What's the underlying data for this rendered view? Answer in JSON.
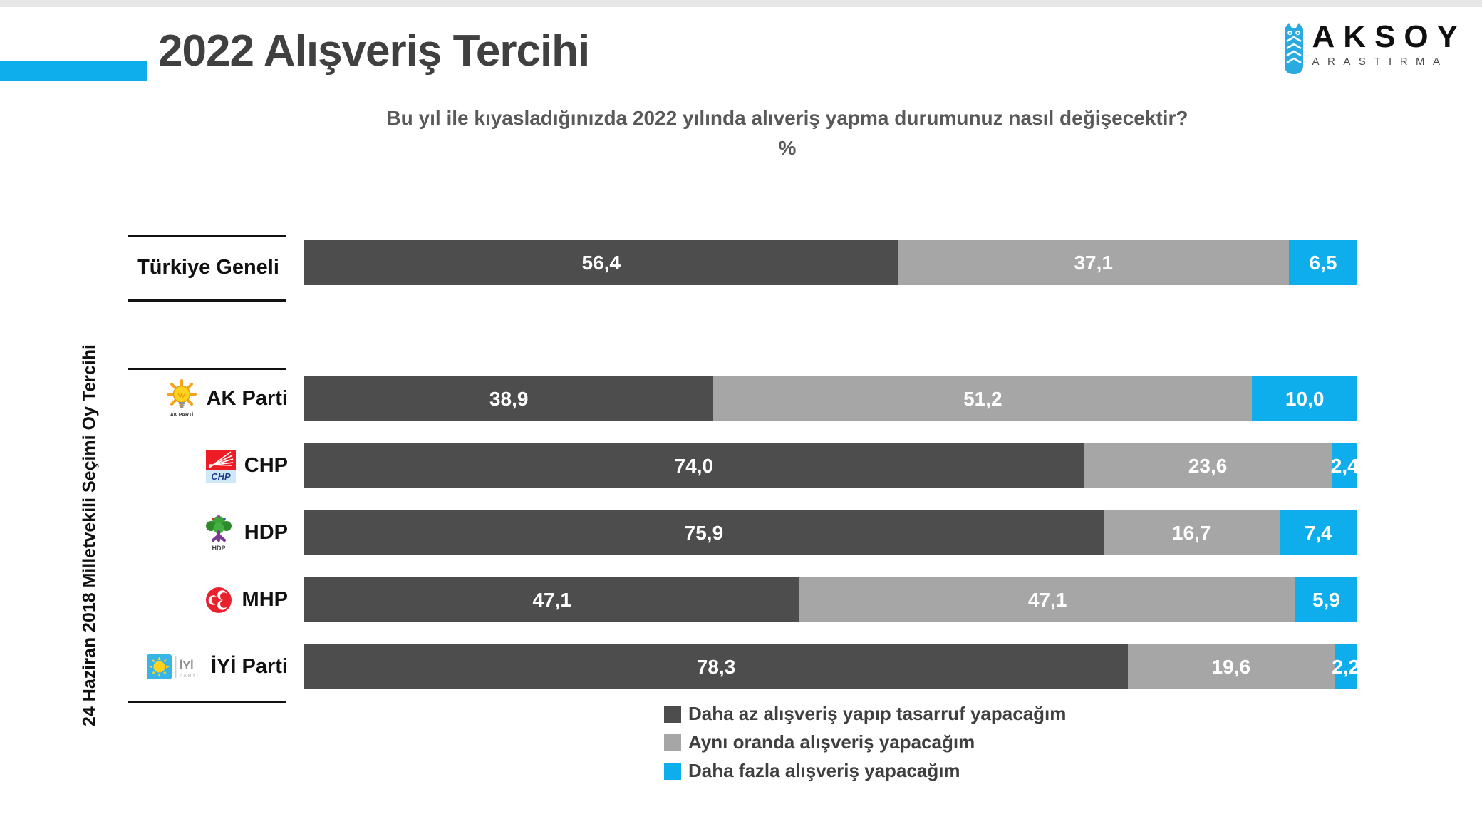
{
  "header": {
    "title": "2022 Alışveriş Tercihi",
    "subtitle": "Bu yıl ile kıyasladığınızda 2022 yılında alıveriş yapma durumunuz nasıl değişecektir?",
    "unit": "%",
    "logo_name": "AKSOY",
    "logo_sub": "ARASTIRMA",
    "accent_color": "#0daeeb"
  },
  "chart_data": {
    "type": "bar",
    "orientation": "horizontal",
    "stacked": true,
    "unit": "%",
    "xlim": [
      0,
      100
    ],
    "grid": false,
    "legend_position": "bottom",
    "categories": [
      "Türkiye Geneli",
      "AK Parti",
      "CHP",
      "HDP",
      "MHP",
      "İYİ Parti"
    ],
    "group_axis_label": "24 Haziran 2018 Milletvekili Seçimi Oy Tercihi",
    "series": [
      {
        "name": "Daha az alışveriş yapıp tasarruf yapacağım",
        "color": "#4d4d4d",
        "values": [
          56.4,
          38.9,
          74.0,
          75.9,
          47.1,
          78.3
        ]
      },
      {
        "name": "Aynı oranda alışveriş yapacağım",
        "color": "#a6a6a6",
        "values": [
          37.1,
          51.2,
          23.6,
          16.7,
          47.1,
          19.6
        ]
      },
      {
        "name": "Daha fazla alışveriş yapacağım",
        "color": "#0daeeb",
        "values": [
          6.5,
          10.0,
          2.4,
          7.4,
          5.9,
          2.2
        ]
      }
    ],
    "labels": [
      [
        "56,4",
        "37,1",
        "6,5"
      ],
      [
        "38,9",
        "51,2",
        "10,0"
      ],
      [
        "74,0",
        "23,6",
        "2,4"
      ],
      [
        "75,9",
        "16,7",
        "7,4"
      ],
      [
        "47,1",
        "47,1",
        "5,9"
      ],
      [
        "78,3",
        "19,6",
        "2,2"
      ]
    ]
  },
  "parties": [
    {
      "logo_caption": "AK PARTİ"
    },
    {
      "logo_caption": "CHP"
    },
    {
      "logo_caption": "HDP"
    },
    {
      "logo_caption": ""
    },
    {
      "logo_caption": "İYİ",
      "logo_caption2": "PARTİ"
    }
  ]
}
